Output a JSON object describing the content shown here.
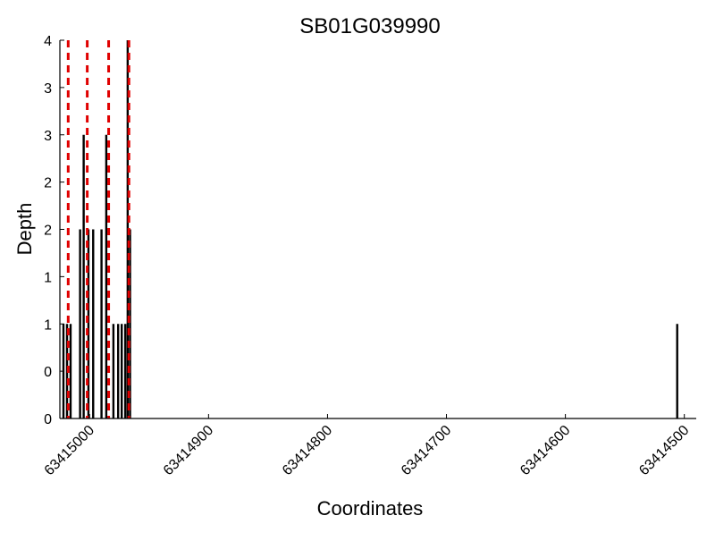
{
  "chart_data": {
    "type": "bar",
    "title": "SB01G039990",
    "xlabel": "Coordinates",
    "ylabel": "Depth",
    "x_reversed": true,
    "xlim": [
      63415025,
      63414490
    ],
    "ylim": [
      0,
      4
    ],
    "x_ticks": [
      {
        "value": 63415000,
        "label": "63415000"
      },
      {
        "value": 63414900,
        "label": "63414900"
      },
      {
        "value": 63414800,
        "label": "63414800"
      },
      {
        "value": 63414700,
        "label": "63414700"
      },
      {
        "value": 63414600,
        "label": "63414600"
      },
      {
        "value": 63414500,
        "label": "63414500"
      }
    ],
    "y_ticks": [
      {
        "value": 0,
        "label": "0"
      },
      {
        "value": 0.5,
        "label": "0"
      },
      {
        "value": 1,
        "label": "1"
      },
      {
        "value": 1.5,
        "label": "1"
      },
      {
        "value": 2,
        "label": "2"
      },
      {
        "value": 2.5,
        "label": "2"
      },
      {
        "value": 3,
        "label": "3"
      },
      {
        "value": 3.5,
        "label": "3"
      },
      {
        "value": 4,
        "label": "4"
      }
    ],
    "grid": false,
    "series": [
      {
        "x": [
          63415022,
          63415019,
          63415016,
          63415008,
          63415005,
          63415001,
          63414997,
          63414990,
          63414986,
          63414980,
          63414976,
          63414973,
          63414970,
          63414968,
          63414966,
          63414506
        ],
        "values": [
          1,
          1,
          1,
          2,
          3,
          2,
          2,
          2,
          3,
          1,
          1,
          1,
          1,
          4,
          2,
          1
        ]
      }
    ],
    "marker_lines": [
      63415018,
      63415002,
      63414984,
      63414967
    ],
    "colors": {
      "bars": "#000000",
      "marker_lines": "#e00000",
      "axes": "#000000"
    }
  }
}
